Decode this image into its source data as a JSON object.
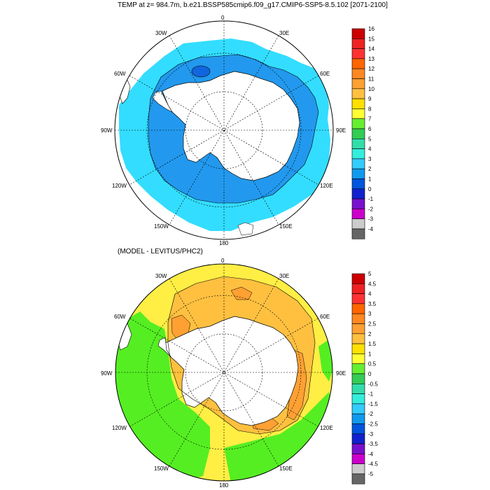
{
  "titles": {
    "top": "TEMP at z= 984.7m, b.e21.BSSP585cmip6.f09_g17.CMIP6-SSP5-8.5.102 [2071-2100]",
    "bottom": "(MODEL - LEVITUS/PHC2)"
  },
  "map_labels": {
    "lon_0": "0",
    "lon_30e": "30E",
    "lon_60e": "60E",
    "lon_90e": "90E",
    "lon_120e": "120E",
    "lon_150e": "150E",
    "lon_180": "180",
    "lon_150w": "150W",
    "lon_120w": "120W",
    "lon_90w": "90W",
    "lon_60w": "60W",
    "lon_30w": "30W"
  },
  "colorbar_top": {
    "labels": [
      "16",
      "15",
      "14",
      "13",
      "12",
      "11",
      "10",
      "9",
      "8",
      "7",
      "6",
      "5",
      "4",
      "3",
      "2",
      "1",
      "0",
      "-1",
      "-2",
      "-3",
      "-4"
    ],
    "colors": [
      "#cc0000",
      "#ee2222",
      "#ff3333",
      "#ff6600",
      "#ff8822",
      "#ffa033",
      "#ffc040",
      "#ffe000",
      "#ffff33",
      "#66ee33",
      "#33cc55",
      "#33ddaa",
      "#33eedd",
      "#33ccff",
      "#1199ee",
      "#0055dd",
      "#1122cc",
      "#7711cc",
      "#cc00cc",
      "#cccccc",
      "#666666"
    ]
  },
  "colorbar_bottom": {
    "labels": [
      "5",
      "4.5",
      "4",
      "3.5",
      "3",
      "2.5",
      "2",
      "1.5",
      "1",
      "0.5",
      "0",
      "-0.5",
      "-1",
      "-1.5",
      "-2",
      "-2.5",
      "-3",
      "-3.5",
      "-4",
      "-4.5",
      "-5"
    ],
    "colors": [
      "#cc0000",
      "#ee2222",
      "#ff3333",
      "#ff6600",
      "#ff8822",
      "#ffa033",
      "#ffc040",
      "#ffe000",
      "#ffff33",
      "#66ee33",
      "#33cc55",
      "#33ddaa",
      "#33eedd",
      "#33ccff",
      "#1199ee",
      "#0055dd",
      "#1122cc",
      "#7711cc",
      "#cc00cc",
      "#cccccc",
      "#666666"
    ]
  },
  "colors": {
    "top_ocean": "#33ddff",
    "top_ocean_deep": "#2299ee",
    "top_blob": "#1166dd",
    "bottom_yellow": "#ffee44",
    "bottom_orange": "#ffc040",
    "bottom_green": "#55ee22",
    "bottom_dark_orange": "#ffa033",
    "land": "#ffffff"
  }
}
